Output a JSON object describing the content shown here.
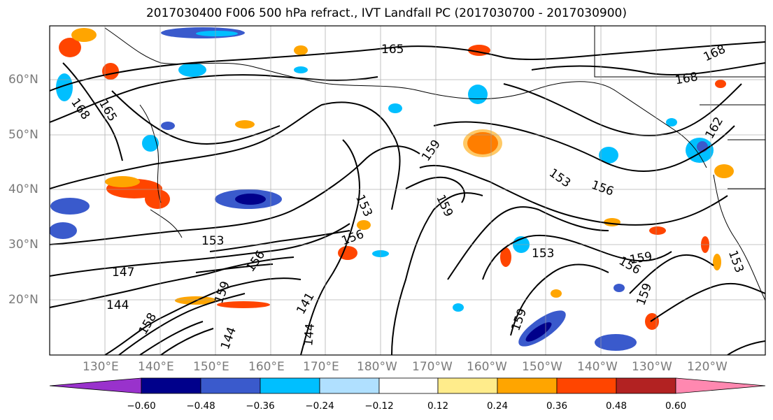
{
  "title": "2017030400 F006 500 hPa refract., IVT Landfall PC (2017030700 - 2017030900)",
  "lat_labels": [
    "60°N",
    "50°N",
    "40°N",
    "30°N",
    "20°N"
  ],
  "lon_labels": [
    "130°E",
    "140°E",
    "150°E",
    "160°E",
    "170°E",
    "180°W",
    "170°W",
    "160°W",
    "150°W",
    "140°W",
    "130°W",
    "120°W"
  ],
  "contour_labels": [
    "165",
    "168",
    "168",
    "168",
    "165",
    "162",
    "159",
    "153",
    "153",
    "156",
    "159",
    "153",
    "156",
    "153",
    "147",
    "144",
    "159",
    "156",
    "141",
    "144",
    "144",
    "159",
    "156",
    "159",
    "153",
    "159",
    "158"
  ],
  "colorbar": {
    "tick_labels": [
      "−0.60",
      "−0.48",
      "−0.36",
      "−0.24",
      "−0.12",
      "0.12",
      "0.24",
      "0.36",
      "0.48",
      "0.60"
    ],
    "colors": [
      "#9932cc",
      "#00008b",
      "#3a5acc",
      "#00bfff",
      "#b0e0ff",
      "#ffffff",
      "#ffec8b",
      "#ffa500",
      "#ff4500",
      "#b22222",
      "#ff88b0"
    ]
  }
}
